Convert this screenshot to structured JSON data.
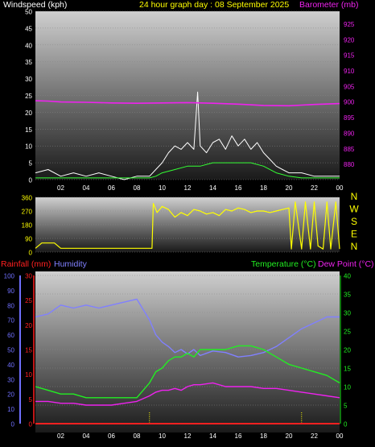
{
  "header": {
    "wind_label": "Windspeed (kph)",
    "title": "24 hour graph day : 08 September 2025",
    "baro_label": "Barometer (mb)"
  },
  "lower_header": {
    "rain_label": "Rainfall (mm)",
    "hum_label": "Humidity",
    "temp_label": "Temperature (°C)",
    "dew_label": "Dew Point (°C)"
  },
  "colors": {
    "wind": "#ffffff",
    "gust": "#cccccc",
    "avg": "#33ff33",
    "baro": "#ee22ee",
    "dir": "#ffff00",
    "rain": "#ff2020",
    "hum": "#8080ff",
    "temp": "#22ee22",
    "dew": "#ee22ee",
    "wind_axis": "#ffffff",
    "baro_axis": "#ee22ee",
    "rain_axis": "#ff2020",
    "hum_axis": "#7070ff",
    "temp_axis": "#22ee22"
  },
  "x_ticks": [
    "02",
    "04",
    "06",
    "08",
    "10",
    "12",
    "14",
    "16",
    "18",
    "20",
    "22",
    "00"
  ],
  "chart_data": [
    {
      "type": "line",
      "title": "24 hour graph day : 08 September 2025",
      "ylabel": "Windspeed (kph)",
      "y2label": "Barometer (mb)",
      "ylim": [
        0,
        50
      ],
      "y2lim": [
        875,
        929
      ],
      "y_ticks": [
        "0",
        "5",
        "10",
        "15",
        "20",
        "25",
        "30",
        "35",
        "40",
        "45",
        "50"
      ],
      "y2_ticks": [
        "880",
        "885",
        "890",
        "895",
        "900",
        "905",
        "910",
        "915",
        "920",
        "925"
      ],
      "series": [
        {
          "name": "Windspeed (kph)",
          "x": [
            0,
            1,
            2,
            3,
            4,
            5,
            6,
            7,
            8,
            9,
            9.5,
            10,
            10.5,
            11,
            11.5,
            12,
            12.5,
            12.8,
            13,
            13.5,
            14,
            14.5,
            15,
            15.5,
            16,
            16.5,
            17,
            17.5,
            18,
            18.5,
            19,
            19.5,
            20,
            21,
            22,
            23,
            24
          ],
          "y": [
            2,
            3,
            1,
            2,
            1,
            2,
            1,
            0,
            1,
            1,
            3,
            5,
            8,
            10,
            9,
            11,
            9,
            26,
            10,
            8,
            11,
            12,
            9,
            13,
            10,
            12,
            9,
            11,
            8,
            6,
            4,
            3,
            2,
            2,
            1,
            1,
            1
          ]
        },
        {
          "name": "Average wind",
          "x": [
            0,
            2,
            4,
            6,
            8,
            9,
            9.5,
            10,
            11,
            12,
            13,
            14,
            15,
            16,
            17,
            18,
            19,
            20,
            21,
            22,
            24
          ],
          "y": [
            0.5,
            0.5,
            0.5,
            0.5,
            0.5,
            0.5,
            1,
            2,
            3,
            4,
            4,
            5,
            5,
            5,
            5,
            4,
            2,
            1,
            0.5,
            0.5,
            0.5
          ]
        },
        {
          "name": "Barometer (mb)",
          "x": [
            0,
            1,
            2,
            4,
            6,
            8,
            10,
            12,
            14,
            16,
            18,
            20,
            22,
            24
          ],
          "y": [
            900.3,
            900.2,
            899.9,
            899.8,
            899.6,
            899.5,
            899.6,
            899.7,
            899.5,
            899.2,
            898.8,
            898.7,
            899.1,
            899.4
          ]
        }
      ]
    },
    {
      "type": "line",
      "ylabel": "Wind direction",
      "compass": [
        "N",
        "W",
        "S",
        "E",
        "N"
      ],
      "ylim": [
        0,
        360
      ],
      "y_ticks": [
        "0",
        "90",
        "180",
        "270",
        "360"
      ],
      "series": [
        {
          "name": "Wind direction",
          "x": [
            0,
            0.5,
            1.5,
            2,
            8,
            9.2,
            9.3,
            9.6,
            10,
            10.5,
            11,
            11.5,
            12,
            12.5,
            13,
            13.5,
            14,
            14.5,
            15,
            15.5,
            16,
            16.5,
            17,
            17.5,
            18,
            18.5,
            19,
            19.5,
            20,
            20.2,
            20.5,
            21,
            21.3,
            21.7,
            22,
            22.3,
            22.7,
            23,
            23.3,
            23.7,
            24
          ],
          "y": [
            25,
            60,
            60,
            25,
            25,
            25,
            320,
            260,
            300,
            280,
            230,
            260,
            240,
            280,
            270,
            250,
            260,
            240,
            280,
            270,
            290,
            280,
            260,
            270,
            270,
            260,
            270,
            280,
            290,
            20,
            330,
            20,
            330,
            20,
            330,
            40,
            20,
            330,
            20,
            330,
            20
          ]
        }
      ]
    },
    {
      "type": "line",
      "ylabel": "Rainfall (mm)",
      "y2label": "Humidity",
      "y3label": "Temperature (°C)",
      "y4label": "Dew Point (°C)",
      "rain_ylim": [
        0,
        30
      ],
      "rain_ticks": [
        "0",
        "5",
        "10",
        "15",
        "20",
        "25",
        "30"
      ],
      "hum_ylim": [
        0,
        100
      ],
      "hum_ticks": [
        "0",
        "10",
        "20",
        "30",
        "40",
        "50",
        "60",
        "70",
        "80",
        "90",
        "100"
      ],
      "temp_ylim": [
        0,
        40
      ],
      "temp_ticks": [
        "0",
        "5",
        "10",
        "15",
        "20",
        "25",
        "30",
        "35",
        "40"
      ],
      "series": [
        {
          "name": "Humidity",
          "x": [
            0,
            1,
            2,
            3,
            4,
            5,
            6,
            7,
            8,
            9,
            9.5,
            10,
            10.5,
            11,
            11.5,
            12,
            12.5,
            13,
            14,
            15,
            16,
            17,
            18,
            19,
            20,
            21,
            22,
            23,
            24
          ],
          "y": [
            72,
            74,
            80,
            78,
            80,
            78,
            80,
            82,
            84,
            70,
            60,
            55,
            52,
            48,
            50,
            47,
            50,
            46,
            49,
            48,
            45,
            46,
            48,
            52,
            58,
            64,
            68,
            72,
            72
          ]
        },
        {
          "name": "Temperature (°C)",
          "x": [
            0,
            1,
            2,
            3,
            4,
            5,
            6,
            7,
            8,
            9,
            9.5,
            10,
            10.5,
            11,
            11.5,
            12,
            12.5,
            13,
            14,
            15,
            16,
            17,
            18,
            19,
            20,
            21,
            22,
            23,
            24
          ],
          "y": [
            10,
            9,
            8,
            8,
            7,
            7,
            7,
            7,
            7,
            11,
            14,
            15,
            17,
            18,
            18,
            19,
            18,
            20,
            20,
            20,
            21,
            21,
            20,
            18,
            16,
            15,
            14,
            13,
            11
          ]
        },
        {
          "name": "Dew Point (°C)",
          "x": [
            0,
            1,
            2,
            3,
            4,
            5,
            6,
            7,
            8,
            9,
            9.5,
            10,
            10.5,
            11,
            11.5,
            12,
            12.5,
            13,
            14,
            15,
            16,
            17,
            18,
            19,
            20,
            21,
            22,
            23,
            24
          ],
          "y": [
            6,
            6,
            5.5,
            5.5,
            5,
            5,
            5,
            5.5,
            6,
            7.5,
            8.5,
            9,
            9,
            9.5,
            9,
            10,
            10.5,
            10.5,
            11,
            10,
            10,
            10,
            9.5,
            9.5,
            9,
            8.5,
            8,
            7.5,
            7
          ]
        },
        {
          "name": "Rainfall (mm)",
          "x": [
            0,
            24
          ],
          "y": [
            0,
            0
          ]
        }
      ],
      "markers_x": [
        9.0,
        21.0
      ]
    }
  ]
}
